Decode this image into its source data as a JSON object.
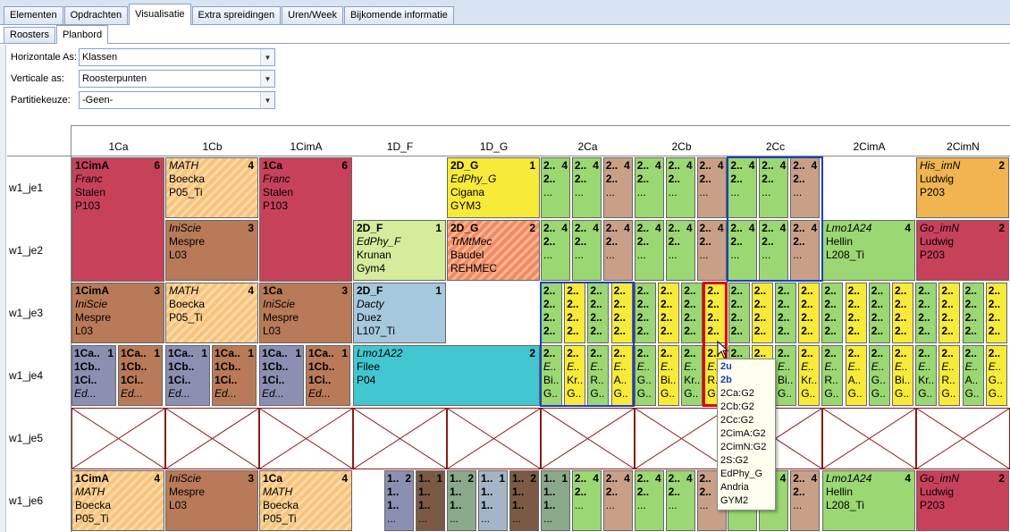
{
  "tabs_main": [
    "Elementen",
    "Opdrachten",
    "Visualisatie",
    "Extra spreidingen",
    "Uren/Week",
    "Bijkomende informatie"
  ],
  "tabs_main_selected": "Visualisatie",
  "tabs_sub": [
    "Roosters",
    "Planbord"
  ],
  "tabs_sub_selected": "Planbord",
  "form": {
    "horizontal_label": "Horizontale As:",
    "horizontal_value": "Klassen",
    "vertical_label": "Verticale as:",
    "vertical_value": "Roosterpunten",
    "partition_label": "Partitiekeuze:",
    "partition_value": "-Geen-"
  },
  "columns": [
    "1Ca",
    "1Cb",
    "1CimA",
    "1D_F",
    "1D_G",
    "2Ca",
    "2Cb",
    "2Cc",
    "2CimA",
    "2CimN"
  ],
  "rows": [
    "w1_je1",
    "w1_je2",
    "w1_je3",
    "w1_je4",
    "w1_je5",
    "w1_je6"
  ],
  "blocks": [
    {
      "id": "b1",
      "lines": [
        "1CimA",
        "Franc",
        "Stalen",
        "P103"
      ],
      "styles": [
        "b",
        "i",
        "",
        ""
      ],
      "count": "6",
      "color": "#c8415b",
      "hatch": false
    },
    {
      "id": "b2",
      "lines": [
        "MATH",
        "Boecka",
        "P05_Ti"
      ],
      "styles": [
        "i",
        "",
        ""
      ],
      "count": "4",
      "color": "#f8c47a",
      "hatch": true
    },
    {
      "id": "b3",
      "lines": [
        "1Ca",
        "Franc",
        "Stalen",
        "P103"
      ],
      "styles": [
        "b",
        "i",
        "",
        ""
      ],
      "count": "6",
      "color": "#c8415b",
      "hatch": false
    },
    {
      "id": "b4",
      "lines": [
        "2D_G",
        "EdPhy_G",
        "Cigana",
        "GYM3"
      ],
      "styles": [
        "b",
        "i",
        "",
        ""
      ],
      "count": "1",
      "color": "#f8ea38",
      "hatch": false
    },
    {
      "id": "b5",
      "lines": [
        "His_imN",
        "Ludwig",
        "P203"
      ],
      "styles": [
        "i",
        "",
        ""
      ],
      "count": "2",
      "color": "#f0b450",
      "hatch": false
    },
    {
      "id": "b6",
      "lines": [
        "IniScie",
        "Mespre",
        "L03"
      ],
      "styles": [
        "i",
        "",
        ""
      ],
      "count": "3",
      "color": "#b87a58",
      "hatch": false
    },
    {
      "id": "b7",
      "lines": [
        "2D_F",
        "EdPhy_F",
        "Krunan",
        "Gym4"
      ],
      "styles": [
        "b",
        "i",
        "",
        ""
      ],
      "count": "1",
      "color": "#d4ec9c",
      "hatch": false
    },
    {
      "id": "b8",
      "lines": [
        "2D_G",
        "TrMtMec",
        "Baudel",
        "REHMEC"
      ],
      "styles": [
        "b",
        "i",
        "",
        ""
      ],
      "count": "2",
      "color": "#f28a60",
      "hatch": true
    },
    {
      "id": "b9",
      "lines": [
        "Lmo1A24",
        "Hellin",
        "L208_Ti"
      ],
      "styles": [
        "i",
        "",
        ""
      ],
      "count": "4",
      "color": "#9bd772",
      "hatch": false
    },
    {
      "id": "b10",
      "lines": [
        "Go_imN",
        "Ludwig",
        "P203"
      ],
      "styles": [
        "i",
        "",
        ""
      ],
      "count": "2",
      "color": "#c8415b",
      "hatch": false
    },
    {
      "id": "b11",
      "lines": [
        "1CimA",
        "IniScie",
        "Mespre",
        "L03"
      ],
      "styles": [
        "b",
        "i",
        "",
        ""
      ],
      "count": "3",
      "color": "#b87a58",
      "hatch": false
    },
    {
      "id": "b12",
      "lines": [
        "MATH",
        "Boecka",
        "P05_Ti"
      ],
      "styles": [
        "i",
        "",
        ""
      ],
      "count": "4",
      "color": "#f8c47a",
      "hatch": true
    },
    {
      "id": "b13",
      "lines": [
        "1Ca",
        "IniScie",
        "Mespre",
        "L03"
      ],
      "styles": [
        "b",
        "i",
        "",
        ""
      ],
      "count": "3",
      "color": "#b87a58",
      "hatch": false
    },
    {
      "id": "b14",
      "lines": [
        "2D_F",
        "Dacty",
        "Duez",
        "L107_Ti"
      ],
      "styles": [
        "b",
        "i",
        "",
        ""
      ],
      "count": "1",
      "color": "#a5c8dc",
      "hatch": false
    },
    {
      "id": "b15",
      "lines": [
        "Lmo1A22",
        "Filee",
        "P04"
      ],
      "styles": [
        "i",
        "",
        ""
      ],
      "count": "2",
      "color": "#42c6d0",
      "hatch": false
    },
    {
      "id": "b16",
      "lines": [
        "1CimA",
        "MATH",
        "Boecka",
        "P05_Ti"
      ],
      "styles": [
        "b",
        "i",
        "",
        ""
      ],
      "count": "4",
      "color": "#f8c47a",
      "hatch": true
    },
    {
      "id": "b17",
      "lines": [
        "IniScie",
        "Mespre",
        "L03"
      ],
      "styles": [
        "i",
        "",
        ""
      ],
      "count": "3",
      "color": "#b87a58",
      "hatch": false
    },
    {
      "id": "b18",
      "lines": [
        "1Ca",
        "MATH",
        "Boecka",
        "P05_Ti"
      ],
      "styles": [
        "b",
        "i",
        "",
        ""
      ],
      "count": "4",
      "color": "#f8c47a",
      "hatch": true
    },
    {
      "id": "b19",
      "lines": [
        "Lmo1A24",
        "Hellin",
        "L208_Ti"
      ],
      "styles": [
        "i",
        "",
        ""
      ],
      "count": "4",
      "color": "#9bd772",
      "hatch": false
    },
    {
      "id": "b20",
      "lines": [
        "Go_imN",
        "Ludwig",
        "P203"
      ],
      "styles": [
        "i",
        "",
        ""
      ],
      "count": "2",
      "color": "#c8415b",
      "hatch": false
    }
  ],
  "minis": {
    "green_count": "4",
    "mini_text": "2..",
    "mini_more": "...",
    "je3_text": "2..",
    "je4_tail": [
      "E..",
      "Bi..",
      "Kr..",
      "R..",
      "A..",
      "G.."
    ],
    "je4_left": [
      "1Ca..",
      "1Cb..",
      "1Ci..",
      "Ed..."
    ],
    "je6_text": "1..",
    "je6_count_a": "2",
    "je6_count_b": "1"
  },
  "tooltip": {
    "lines": [
      "2u",
      "2b",
      "2Ca:G2",
      "2Cb:G2",
      "2Cc:G2",
      "2CimA:G2",
      "2CimN:G2",
      "2S:G2",
      "EdPhy_G",
      "Andria",
      "GYM2"
    ]
  },
  "colors": {
    "green": "#9bd772",
    "yellow": "#f8ea38",
    "tan": "#c8a088",
    "selection_blue": "#1c3fbf",
    "selection_red": "#e00000"
  }
}
